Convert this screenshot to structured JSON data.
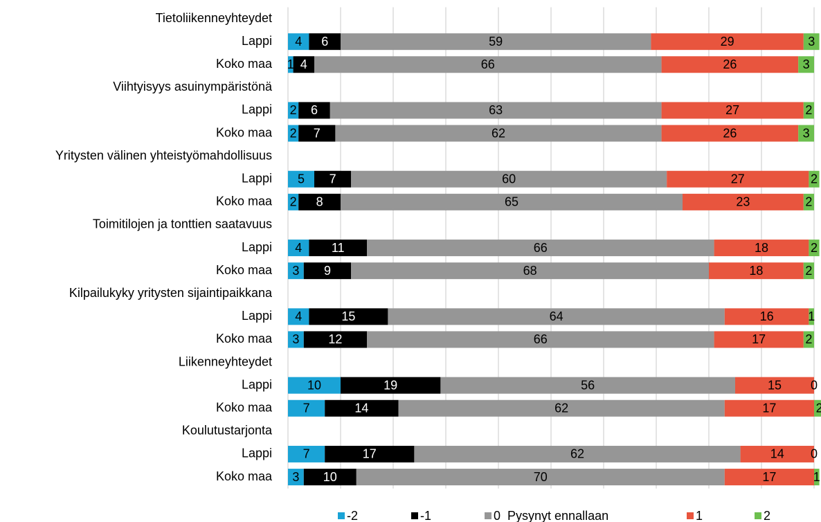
{
  "chart_data": {
    "type": "stacked-bar-horizontal",
    "categories": [
      "Tietoliikenneyhteydet",
      "Lappi",
      "Koko maa",
      "Viihtyisyys asuinympäristönä",
      "Lappi",
      "Koko maa",
      "Yritysten välinen yhteistyömahdollisuus",
      "Lappi",
      "Koko maa",
      "Toimitilojen ja tonttien saatavuus",
      "Lappi",
      "Koko maa",
      "Kilpailukyky yritysten sijaintipaikkana",
      "Lappi",
      "Koko maa",
      "Liikenneyhteydet",
      "Lappi",
      "Koko maa",
      "Koulutustarjonta",
      "Lappi",
      "Koko maa"
    ],
    "series": [
      {
        "name": "-2",
        "color": "#1aa3d6",
        "values": [
          null,
          4,
          1,
          null,
          2,
          2,
          null,
          5,
          2,
          null,
          4,
          3,
          null,
          4,
          3,
          null,
          10,
          7,
          null,
          7,
          3
        ]
      },
      {
        "name": "-1",
        "color": "#000000",
        "values": [
          null,
          6,
          4,
          null,
          6,
          7,
          null,
          7,
          8,
          null,
          11,
          9,
          null,
          15,
          12,
          null,
          19,
          14,
          null,
          17,
          10
        ]
      },
      {
        "name": "0  Pysynyt ennallaan",
        "color": "#969696",
        "values": [
          null,
          59,
          66,
          null,
          63,
          62,
          null,
          60,
          65,
          null,
          66,
          68,
          null,
          64,
          66,
          null,
          56,
          62,
          null,
          62,
          70
        ]
      },
      {
        "name": "1",
        "color": "#e8553e",
        "values": [
          null,
          29,
          26,
          null,
          27,
          26,
          null,
          27,
          23,
          null,
          18,
          18,
          null,
          16,
          17,
          null,
          15,
          17,
          null,
          14,
          17
        ]
      },
      {
        "name": "2",
        "color": "#6dbf4f",
        "values": [
          null,
          3,
          3,
          null,
          2,
          3,
          null,
          2,
          2,
          null,
          2,
          2,
          null,
          1,
          2,
          null,
          0,
          2,
          null,
          0,
          1
        ]
      }
    ],
    "xlim": [
      0,
      100
    ],
    "xticks": [
      0,
      10,
      20,
      30,
      40,
      50,
      60,
      70,
      80,
      90,
      100
    ],
    "grid": true,
    "legend": "bottom"
  }
}
